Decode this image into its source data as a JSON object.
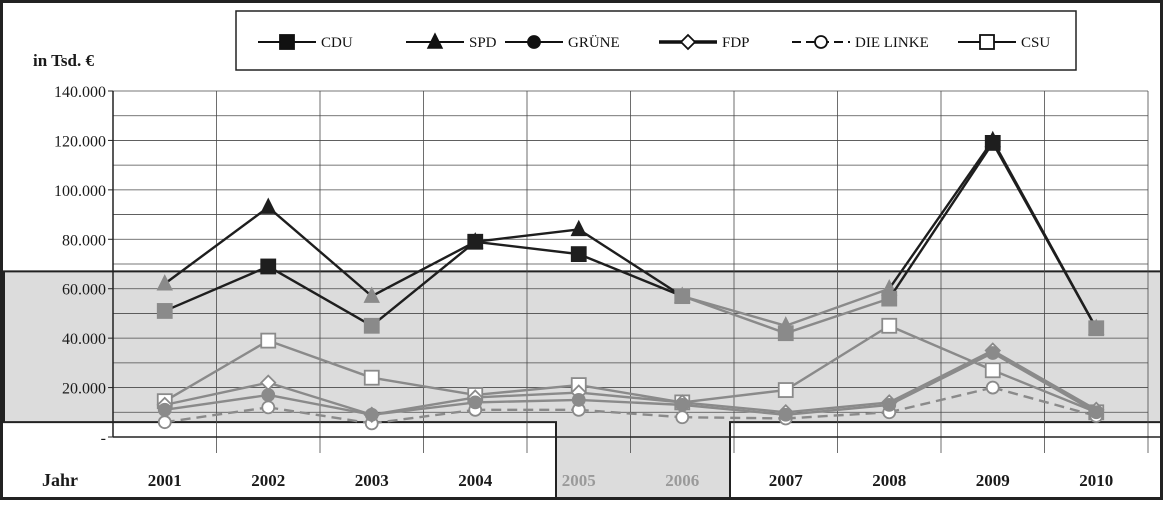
{
  "chart_data": {
    "type": "line",
    "ylabel": "in Tsd. €",
    "xlabel": "Jahr",
    "categories": [
      "2001",
      "2002",
      "2003",
      "2004",
      "2005",
      "2006",
      "2007",
      "2008",
      "2009",
      "2010"
    ],
    "ylim": [
      0,
      140000
    ],
    "yticks": [
      {
        "value": 0,
        "label": "-"
      },
      {
        "value": 20000,
        "label": "20.000"
      },
      {
        "value": 40000,
        "label": "40.000"
      },
      {
        "value": 60000,
        "label": "60.000"
      },
      {
        "value": 80000,
        "label": "80.000"
      },
      {
        "value": 100000,
        "label": "100.000"
      },
      {
        "value": 120000,
        "label": "120.000"
      },
      {
        "value": 140000,
        "label": "140.000"
      }
    ],
    "grid": true,
    "legend_position": "top-center",
    "series": [
      {
        "name": "CDU",
        "marker": "square-filled",
        "dash": "solid",
        "values": [
          51000,
          69000,
          45000,
          79000,
          74000,
          57000,
          42000,
          56000,
          119000,
          44000
        ]
      },
      {
        "name": "SPD",
        "marker": "triangle-filled",
        "dash": "solid",
        "values": [
          62000,
          93000,
          57000,
          79000,
          84000,
          57000,
          45000,
          60000,
          120000,
          44000
        ]
      },
      {
        "name": "GRÜNE",
        "marker": "circle-filled",
        "dash": "solid",
        "values": [
          11000,
          17000,
          9000,
          14000,
          15000,
          13000,
          9000,
          13000,
          34000,
          10000
        ]
      },
      {
        "name": "FDP",
        "marker": "diamond-open",
        "dash": "solid",
        "values": [
          13000,
          22000,
          9000,
          16000,
          18000,
          14000,
          10000,
          14000,
          35000,
          11000
        ]
      },
      {
        "name": "DIE LINKE",
        "marker": "circle-open",
        "dash": "dashed",
        "values": [
          6000,
          12000,
          5500,
          11000,
          11000,
          8000,
          7500,
          10000,
          20000,
          8500
        ]
      },
      {
        "name": "CSU",
        "marker": "square-open",
        "dash": "solid",
        "values": [
          14500,
          39000,
          24000,
          17000,
          21000,
          14000,
          19000,
          45000,
          27000,
          10000
        ]
      }
    ]
  },
  "colors": {
    "line_dark": "#1e1e1e",
    "line_gray": "#8a8a8a",
    "overlay_fill": "#dcdcdc",
    "grid": "#4a4a4a"
  }
}
